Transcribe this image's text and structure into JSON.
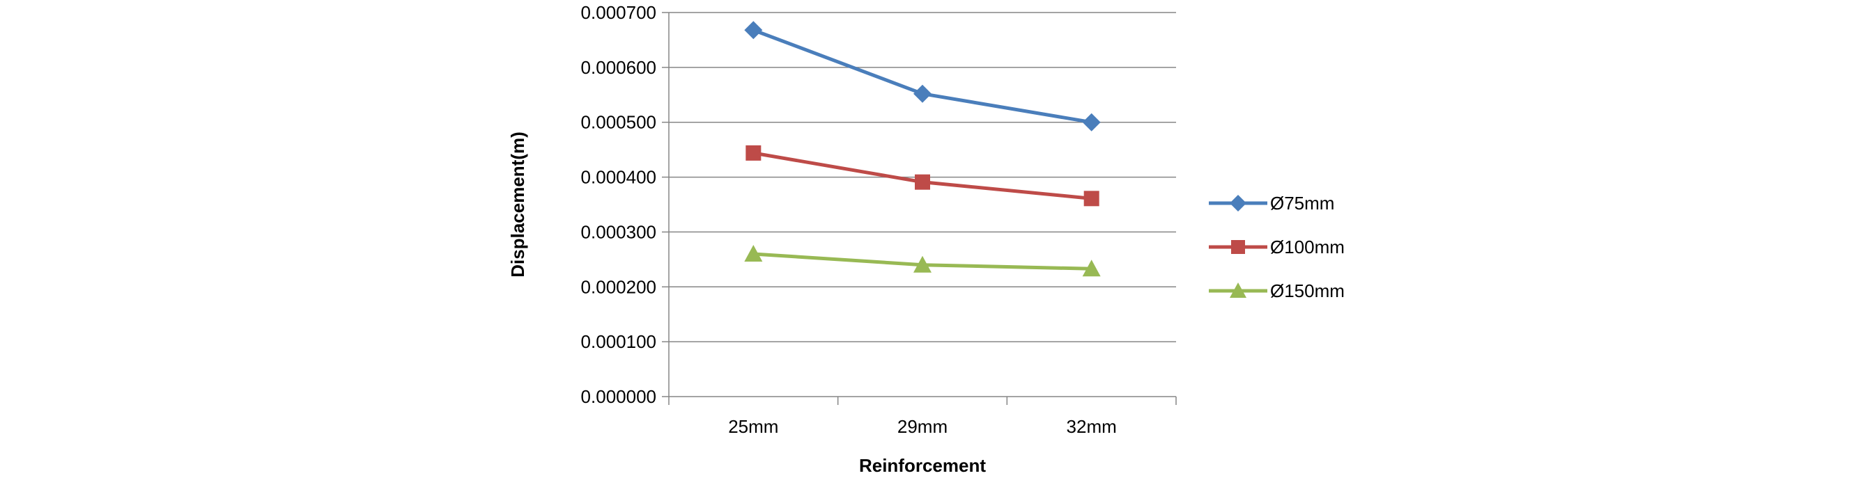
{
  "chart_data": {
    "type": "line",
    "title": "",
    "xlabel": "Reinforcement",
    "ylabel": "Displacement(m)",
    "categories": [
      "25mm",
      "29mm",
      "32mm"
    ],
    "ylim": [
      0,
      0.0007
    ],
    "ytick_step": 0.0001,
    "ytick_labels": [
      "0.000000",
      "0.000100",
      "0.000200",
      "0.000300",
      "0.000400",
      "0.000500",
      "0.000600",
      "0.000700"
    ],
    "grid": "horizontal",
    "legend_position": "right",
    "series": [
      {
        "name": "Ø75mm",
        "color": "#4a7ebb",
        "marker": "diamond",
        "values": [
          0.000668,
          0.000552,
          0.0005
        ]
      },
      {
        "name": "Ø100mm",
        "color": "#be4b48",
        "marker": "square",
        "values": [
          0.000444,
          0.000391,
          0.000361
        ]
      },
      {
        "name": "Ø150mm",
        "color": "#98b954",
        "marker": "triangle",
        "values": [
          0.00026,
          0.00024,
          0.000233
        ]
      }
    ]
  }
}
